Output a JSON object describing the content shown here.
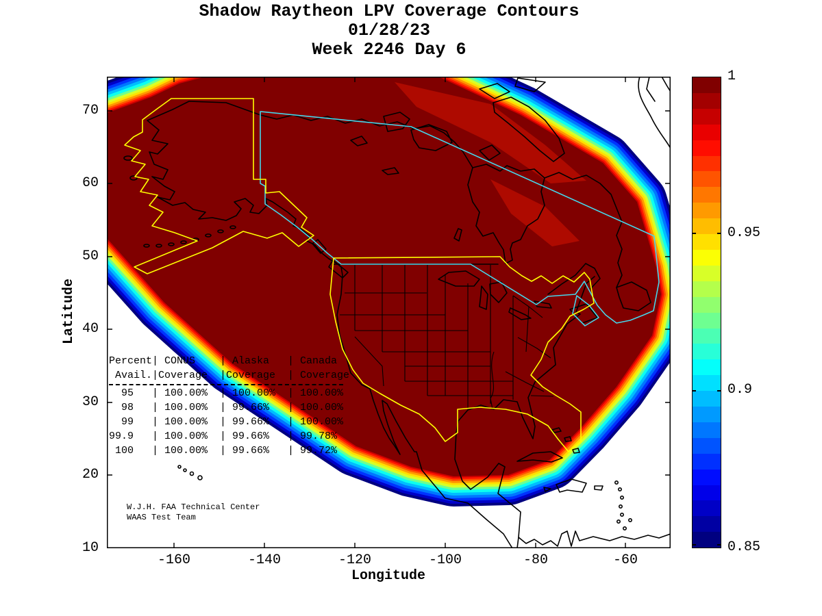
{
  "title": {
    "line1": "Shadow Raytheon LPV Coverage Contours",
    "line2": "01/28/23",
    "line3": "Week 2246 Day 6"
  },
  "axes": {
    "x": {
      "label": "Longitude",
      "tick_labels": [
        "-160",
        "-140",
        "-120",
        "-100",
        "-80",
        "-60"
      ]
    },
    "y": {
      "label": "Latitude",
      "tick_labels": [
        "70",
        "60",
        "50",
        "40",
        "30",
        "20",
        "10"
      ]
    }
  },
  "colorbar_labels": [
    "1",
    "0.95",
    "0.9",
    "0.85"
  ],
  "coverage_table": {
    "lines": [
      "Percent| CONUS    | Alaska   | Canada",
      " Avail.|Coverage  |Coverage  | Coverage",
      "  95   | 100.00%  | 100.00%  | 100.00%",
      "  98   | 100.00%  | 99.66%   | 100.00%",
      "  99   | 100.00%  | 99.66%   | 100.00%",
      "99.9   | 100.00%  | 99.66%   | 99.78%",
      " 100   | 100.00%  | 99.66%   | 99.72%"
    ]
  },
  "credit": {
    "line1": "W.J.H. FAA Technical Center",
    "line2": "WAAS Test Team"
  },
  "map": {
    "boundaries": {
      "conus_color": "#FFFF00",
      "alaska_color": "#FFFF00",
      "canada_color": "#45D8EC",
      "coastline_color": "#000000"
    }
  },
  "chart_data": {
    "type": "contour_map",
    "title": "Shadow Raytheon LPV Coverage Contours",
    "date": "01/28/23",
    "gps_week": "Week 2246 Day 6",
    "xlabel": "Longitude",
    "ylabel": "Latitude",
    "xlim": [
      -175,
      -50
    ],
    "ylim": [
      10,
      75
    ],
    "x_ticks": [
      -160,
      -140,
      -120,
      -100,
      -80,
      -60
    ],
    "y_ticks": [
      70,
      60,
      50,
      40,
      30,
      20,
      10
    ],
    "grid": false,
    "colorbar": {
      "orientation": "vertical",
      "range": [
        0.85,
        1.0
      ],
      "label_values": [
        1,
        0.95,
        0.9,
        0.85
      ],
      "colormap": "jet",
      "steps": [
        "#800000",
        "#A30000",
        "#C60000",
        "#E90000",
        "#FF0D00",
        "#FF3000",
        "#FF5400",
        "#FF7700",
        "#FF9A00",
        "#FFBD00",
        "#FFE000",
        "#FBFF04",
        "#D8FF28",
        "#B4FF4B",
        "#91FF6E",
        "#6EFF91",
        "#4BFFB4",
        "#28FFD8",
        "#04FFFB",
        "#00E0FF",
        "#00BDFF",
        "#009AFF",
        "#0077FF",
        "#0054FF",
        "#0030FF",
        "#000DFF",
        "#0000E9",
        "#0000C6",
        "#0000A3",
        "#000080"
      ]
    },
    "fill_color": "#800000",
    "contour_fringe_colors": [
      "#000080",
      "#0000C8",
      "#0033FF",
      "#0077FF",
      "#00BDFF",
      "#0CFFF0",
      "#6EFF91",
      "#D8FF28",
      "#FFE000",
      "#FF9A00",
      "#FF5400",
      "#FF1500",
      "#CC0000"
    ],
    "coverage_interpretation": "LPV coverage probability contours over North America; dark red interior = 1.0, rainbow fringe steps down to 0.85 at outer edge",
    "availability_table": {
      "columns": [
        "Percent Avail.",
        "CONUS Coverage",
        "Alaska Coverage",
        "Canada Coverage"
      ],
      "rows": [
        [
          "95",
          "100.00%",
          "100.00%",
          "100.00%"
        ],
        [
          "98",
          "100.00%",
          "99.66%",
          "100.00%"
        ],
        [
          "99",
          "100.00%",
          "99.66%",
          "100.00%"
        ],
        [
          "99.9",
          "100.00%",
          "99.66%",
          "99.78%"
        ],
        [
          "100",
          "100.00%",
          "99.66%",
          "99.72%"
        ]
      ]
    },
    "regions_outlined": [
      "CONUS (yellow)",
      "Alaska (yellow)",
      "Canada (cyan)"
    ],
    "annotations": [
      "W.J.H. FAA Technical Center",
      "WAAS Test Team"
    ]
  }
}
